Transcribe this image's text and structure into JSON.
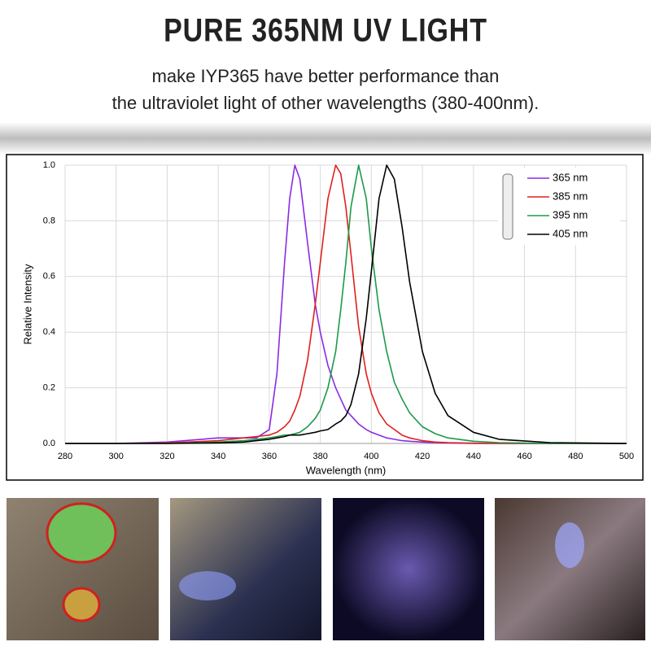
{
  "header": {
    "title": "PURE 365NM UV LIGHT",
    "subtitle_lines": [
      "make IYP365 have better performance than",
      "the ultraviolet light of other wavelengths (380-400nm)."
    ]
  },
  "chart_data": {
    "type": "line",
    "x_label": "Wavelength (nm)",
    "y_label": "Relative Intensity",
    "x": [
      280,
      300,
      320,
      340,
      350,
      355,
      360,
      363,
      366,
      368,
      370,
      372,
      375,
      378,
      380,
      383,
      386,
      388,
      390,
      392,
      395,
      398,
      400,
      403,
      406,
      409,
      412,
      415,
      420,
      425,
      430,
      440,
      450,
      470,
      500
    ],
    "series": [
      {
        "name": "365 nm",
        "color": "#8a2be2",
        "values": [
          0,
          0,
          0.005,
          0.02,
          0.02,
          0.02,
          0.05,
          0.25,
          0.65,
          0.88,
          1.0,
          0.95,
          0.72,
          0.5,
          0.4,
          0.28,
          0.2,
          0.16,
          0.12,
          0.1,
          0.07,
          0.05,
          0.04,
          0.03,
          0.02,
          0.015,
          0.01,
          0.008,
          0.005,
          0.003,
          0.002,
          0,
          0,
          0,
          0
        ]
      },
      {
        "name": "385 nm",
        "color": "#e0201c",
        "values": [
          0,
          0,
          0.002,
          0.01,
          0.02,
          0.025,
          0.03,
          0.04,
          0.06,
          0.08,
          0.12,
          0.17,
          0.3,
          0.5,
          0.65,
          0.88,
          1.0,
          0.97,
          0.85,
          0.68,
          0.42,
          0.25,
          0.18,
          0.11,
          0.07,
          0.05,
          0.03,
          0.02,
          0.01,
          0.005,
          0.003,
          0.001,
          0,
          0,
          0
        ]
      },
      {
        "name": "395 nm",
        "color": "#1a9a4a",
        "values": [
          0,
          0,
          0,
          0.005,
          0.01,
          0.015,
          0.02,
          0.025,
          0.03,
          0.03,
          0.035,
          0.04,
          0.06,
          0.09,
          0.12,
          0.2,
          0.33,
          0.48,
          0.65,
          0.85,
          1.0,
          0.88,
          0.7,
          0.48,
          0.33,
          0.22,
          0.16,
          0.11,
          0.06,
          0.035,
          0.02,
          0.008,
          0.003,
          0,
          0
        ]
      },
      {
        "name": "405 nm",
        "color": "#000000",
        "values": [
          0,
          0,
          0,
          0.002,
          0.005,
          0.01,
          0.015,
          0.02,
          0.025,
          0.03,
          0.03,
          0.03,
          0.035,
          0.04,
          0.045,
          0.05,
          0.07,
          0.08,
          0.1,
          0.14,
          0.25,
          0.45,
          0.62,
          0.88,
          1.0,
          0.95,
          0.78,
          0.58,
          0.33,
          0.18,
          0.1,
          0.04,
          0.015,
          0.003,
          0
        ]
      }
    ],
    "xlim": [
      280,
      500
    ],
    "xticks": [
      280,
      300,
      320,
      340,
      360,
      380,
      400,
      420,
      440,
      460,
      480,
      500
    ],
    "ylim": [
      0,
      1
    ],
    "yticks": [
      {
        "value": 0,
        "label": "0.0"
      },
      {
        "value": 0.2,
        "label": "0.2"
      },
      {
        "value": 0.4,
        "label": "0.4"
      },
      {
        "value": 0.6,
        "label": "0.6"
      },
      {
        "value": 0.8,
        "label": "0.8"
      },
      {
        "value": 1,
        "label": "1.0"
      }
    ],
    "grid": true,
    "legend": "upper-right"
  }
}
